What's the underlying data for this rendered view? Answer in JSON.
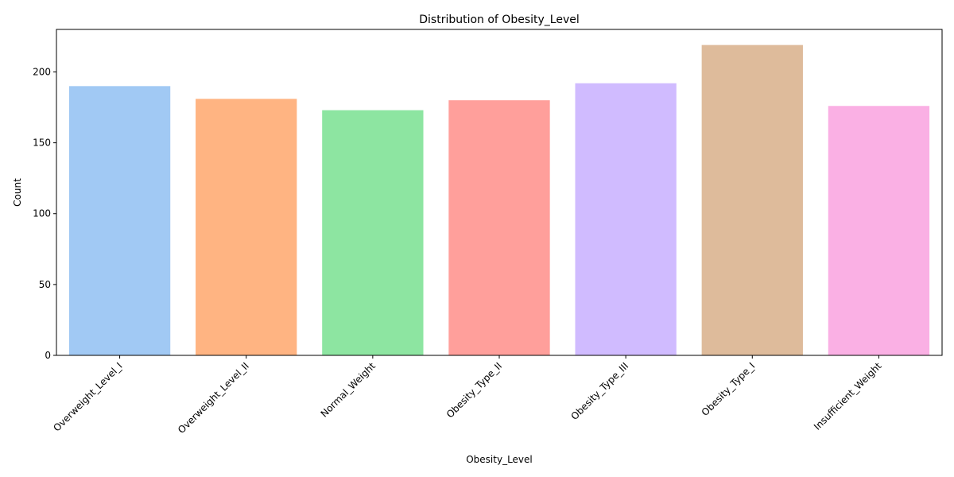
{
  "chart_data": {
    "type": "bar",
    "title": "Distribution of Obesity_Level",
    "xlabel": "Obesity_Level",
    "ylabel": "Count",
    "categories": [
      "Overweight_Level_I",
      "Overweight_Level_II",
      "Normal_Weight",
      "Obesity_Type_II",
      "Obesity_Type_III",
      "Obesity_Type_I",
      "Insufficient_Weight"
    ],
    "values": [
      190,
      181,
      173,
      180,
      192,
      219,
      176
    ],
    "colors": [
      "#a1c9f4",
      "#ffb482",
      "#8de5a1",
      "#ff9f9b",
      "#d0bbff",
      "#debb9b",
      "#fab0e4"
    ],
    "yticks": [
      0,
      50,
      100,
      150,
      200
    ],
    "ylim": [
      0,
      230
    ],
    "grid": false,
    "legend": "none"
  }
}
